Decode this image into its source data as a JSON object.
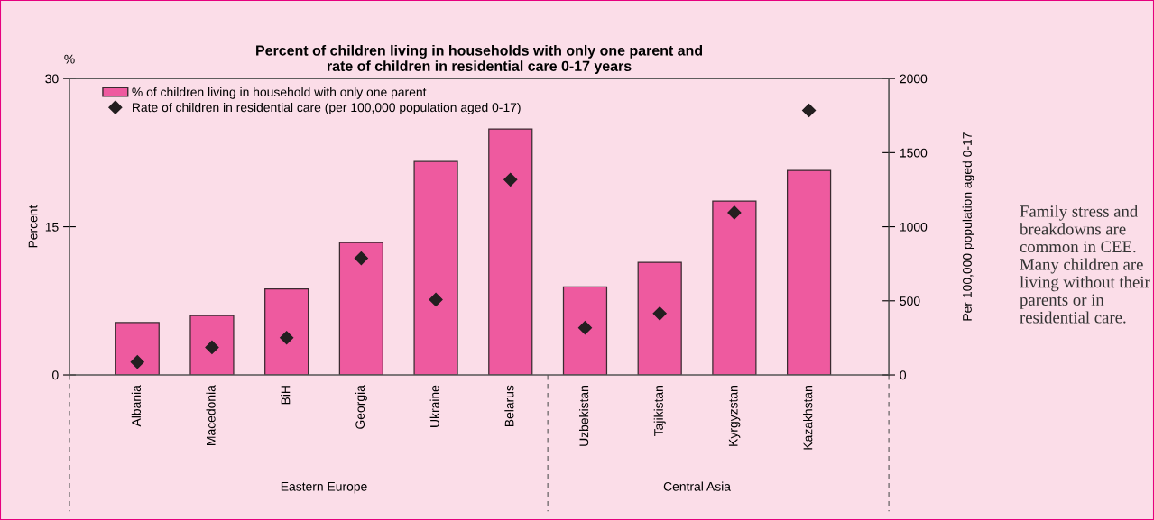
{
  "chart_data": {
    "type": "bar",
    "title": "Percent of children living in households with only one parent and\nrate of children in residential care 0-17 years",
    "ylabel": "Percent",
    "y2label": "Per 100,000 population aged 0-17",
    "categories": [
      "Albania",
      "Macedonia",
      "BiH",
      "Georgia",
      "Ukraine",
      "Belarus",
      "Uzbekistan",
      "Tajikistan",
      "Kyrgyzstan",
      "Kazakhstan"
    ],
    "series": [
      {
        "name": "% of children living in household with only one parent",
        "color": "#ee5a9f",
        "values": [
          5.3,
          6.0,
          8.7,
          13.4,
          21.6,
          24.9,
          8.9,
          11.4,
          17.6,
          20.7
        ]
      },
      {
        "name": "Rate of children in residential care (per 100,000 population aged 0-17)",
        "type": "scatter",
        "axis": "y2",
        "marker": "diamond",
        "color": "#231f20",
        "values": [
          87,
          186,
          251,
          787,
          508,
          1318,
          318,
          415,
          1095,
          1785
        ]
      }
    ],
    "ylim": [
      0,
      30
    ],
    "yticks": [
      0,
      15,
      30
    ],
    "y2lim": [
      0,
      2000
    ],
    "y2ticks": [
      0,
      500,
      1000,
      1500,
      2000
    ],
    "grid": false,
    "legend": "top left",
    "annotations": [
      "%",
      "Eastern Europe",
      "Central Asia",
      "Family stress and breakdowns are common in CEE. Many children are living without their parents or in residential care."
    ]
  }
}
